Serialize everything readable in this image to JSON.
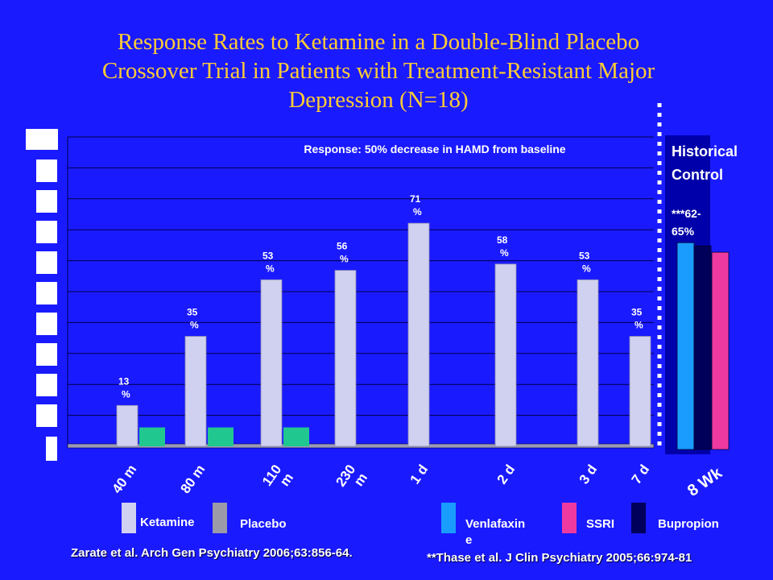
{
  "title_lines": [
    "Response Rates to Ketamine in a Double-Blind Placebo",
    "Crossover Trial in Patients with Treatment-Resistant Major",
    "Depression (N=18)"
  ],
  "colors": {
    "background": "#1a1aff",
    "title": "#ffcc33",
    "ketamine": "#d0d0f0",
    "placebo": "#20c890",
    "venlafaxine": "#1a9cff",
    "ssri": "#ee3aa0",
    "bupropion": "#00005a",
    "historical_panel": "#0000aa"
  },
  "chart_data": {
    "type": "bar",
    "subtitle": "Response: 50% decrease in HAMD from baseline",
    "categories": [
      "40 m",
      "80 m",
      "110 m",
      "230 m",
      "1 d",
      "2 d",
      "3 d",
      "7 d"
    ],
    "ylim": [
      0,
      100
    ],
    "grid": true,
    "series": [
      {
        "name": "Ketamine",
        "values": [
          13,
          35,
          53,
          56,
          71,
          58,
          53,
          35
        ],
        "labels": [
          "13 %",
          "35 %",
          "53 %",
          "56 %",
          "71 %",
          "58 %",
          "53 %",
          "35 %"
        ]
      },
      {
        "name": "Placebo",
        "values": [
          6,
          6,
          6,
          null,
          null,
          null,
          null,
          null
        ]
      }
    ],
    "historical_control": {
      "title": "Historical Control",
      "label": "***62-65%",
      "category": "8 Wk",
      "series": [
        {
          "name": "Venlafaxine",
          "value": 65
        },
        {
          "name": "Bupropion",
          "value": 64
        },
        {
          "name": "SSRI",
          "value": 62
        }
      ]
    },
    "legend": [
      "Ketamine",
      "Placebo",
      "Venlafaxine",
      "SSRI",
      "Bupropion"
    ]
  },
  "legend_labels": {
    "ketamine": "Ketamine",
    "placebo": "Placebo",
    "venlafaxine_line1": "Venlafaxin",
    "venlafaxine_line2": "e",
    "ssri": "SSRI",
    "bupropion": "Bupropion"
  },
  "footnotes": {
    "zarate": "Zarate et al. Arch Gen Psychiatry 2006;63:856-64.",
    "thase": "**Thase et al. J Clin Psychiatry 2005;66:974-81"
  }
}
